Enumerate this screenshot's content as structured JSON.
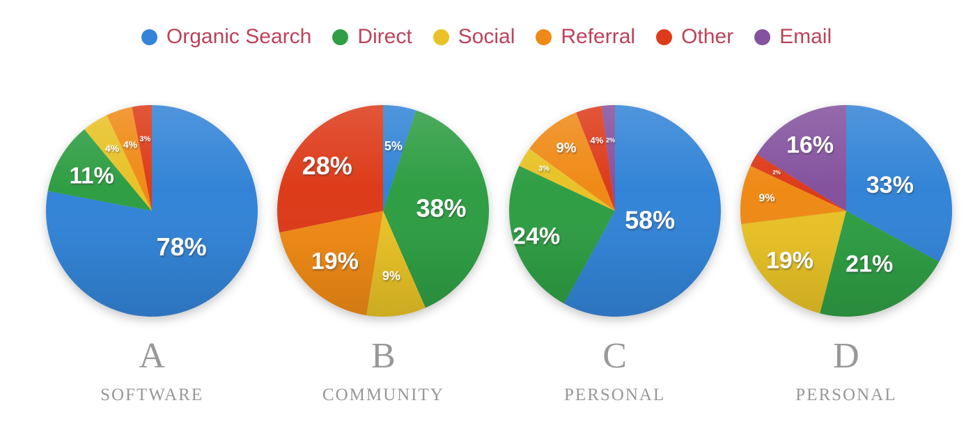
{
  "legend": {
    "text_color": "#bd4258",
    "items": [
      {
        "label": "Organic Search",
        "color": "#3384d7"
      },
      {
        "label": "Direct",
        "color": "#2f9e44"
      },
      {
        "label": "Social",
        "color": "#e8c227"
      },
      {
        "label": "Referral",
        "color": "#ef8a16"
      },
      {
        "label": "Other",
        "color": "#dd3b19"
      },
      {
        "label": "Email",
        "color": "#84529e"
      }
    ]
  },
  "chart_data": [
    {
      "type": "pie",
      "letter": "A",
      "category": "SOFTWARE",
      "start_angle_deg": 0,
      "direction": "clockwise",
      "legend_position": "top",
      "slices": [
        {
          "name": "Organic Search",
          "value": 78,
          "label": "78%",
          "color": "#3384d7",
          "label_r": 0.44,
          "label_size": 36
        },
        {
          "name": "Direct",
          "value": 11,
          "label": "11%",
          "color": "#2f9e44",
          "label_r": 0.66,
          "label_size": 33
        },
        {
          "name": "Social",
          "value": 4,
          "label": "4%",
          "color": "#e8c227",
          "label_r": 0.7,
          "label_size": 14
        },
        {
          "name": "Referral",
          "value": 4,
          "label": "4%",
          "color": "#ef8a16",
          "label_r": 0.66,
          "label_size": 14
        },
        {
          "name": "Other",
          "value": 3,
          "label": "3%",
          "color": "#dd3b19",
          "label_r": 0.68,
          "label_size": 11
        }
      ]
    },
    {
      "type": "pie",
      "letter": "B",
      "category": "COMMUNITY",
      "start_angle_deg": 0,
      "direction": "clockwise",
      "legend_position": "top",
      "slices": [
        {
          "name": "Organic Search",
          "value": 5,
          "label": "5%",
          "color": "#3384d7",
          "label_r": 0.62,
          "label_size": 18
        },
        {
          "name": "Direct",
          "value": 38,
          "label": "38%",
          "color": "#2f9e44",
          "label_r": 0.55,
          "label_size": 36
        },
        {
          "name": "Social",
          "value": 9,
          "label": "9%",
          "color": "#e8c227",
          "label_r": 0.62,
          "label_size": 18
        },
        {
          "name": "Referral",
          "value": 19,
          "label": "19%",
          "color": "#ef8a16",
          "label_r": 0.66,
          "label_size": 34
        },
        {
          "name": "Other",
          "value": 28,
          "label": "28%",
          "color": "#dd3b19",
          "label_r": 0.68,
          "label_size": 36
        }
      ]
    },
    {
      "type": "pie",
      "letter": "C",
      "category": "PERSONAL",
      "start_angle_deg": 0,
      "direction": "clockwise",
      "legend_position": "top",
      "slices": [
        {
          "name": "Organic Search",
          "value": 58,
          "label": "58%",
          "color": "#3384d7",
          "label_r": 0.34,
          "label_size": 36
        },
        {
          "name": "Direct",
          "value": 24,
          "label": "24%",
          "color": "#2f9e44",
          "label_r": 0.78,
          "label_size": 34
        },
        {
          "name": "Social",
          "value": 3,
          "label": "3%",
          "color": "#e8c227",
          "label_r": 0.78,
          "label_size": 11
        },
        {
          "name": "Referral",
          "value": 9,
          "label": "9%",
          "color": "#ef8a16",
          "label_r": 0.75,
          "label_size": 20
        },
        {
          "name": "Other",
          "value": 4,
          "label": "4%",
          "color": "#dd3b19",
          "label_r": 0.69,
          "label_size": 13
        },
        {
          "name": "Email",
          "value": 2,
          "label": "2%",
          "color": "#84529e",
          "label_r": 0.67,
          "label_size": 9
        }
      ]
    },
    {
      "type": "pie",
      "letter": "D",
      "category": "PERSONAL",
      "start_angle_deg": 0,
      "direction": "clockwise",
      "legend_position": "top",
      "slices": [
        {
          "name": "Organic Search",
          "value": 33,
          "label": "33%",
          "color": "#3384d7",
          "label_r": 0.48,
          "label_size": 34
        },
        {
          "name": "Direct",
          "value": 21,
          "label": "21%",
          "color": "#2f9e44",
          "label_r": 0.55,
          "label_size": 34
        },
        {
          "name": "Social",
          "value": 19,
          "label": "19%",
          "color": "#e8c227",
          "label_r": 0.71,
          "label_size": 34
        },
        {
          "name": "Referral",
          "value": 9,
          "label": "9%",
          "color": "#ef8a16",
          "label_r": 0.76,
          "label_size": 16
        },
        {
          "name": "Other",
          "value": 2,
          "label": "2%",
          "color": "#dd3b19",
          "label_r": 0.75,
          "label_size": 8
        },
        {
          "name": "Email",
          "value": 16,
          "label": "16%",
          "color": "#84529e",
          "label_r": 0.71,
          "label_size": 34
        }
      ]
    }
  ]
}
